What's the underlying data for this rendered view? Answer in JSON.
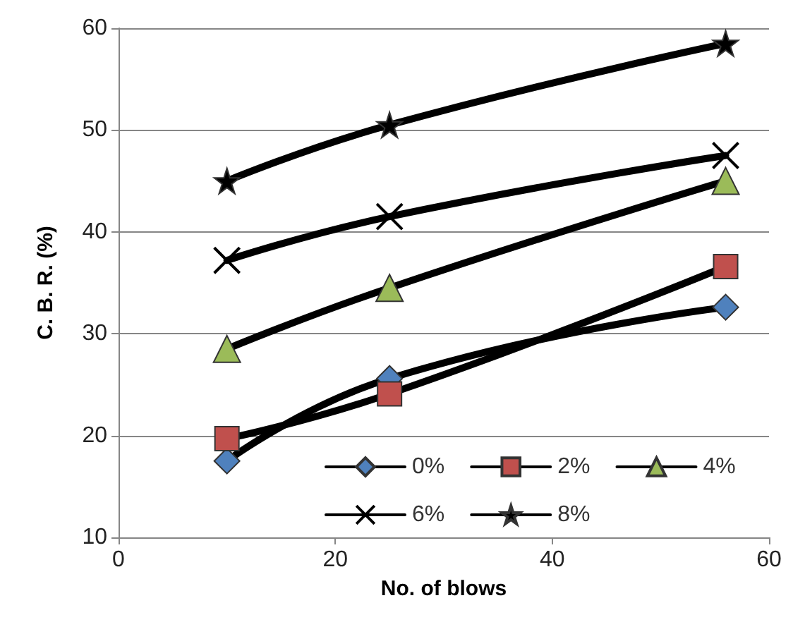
{
  "chart_data": {
    "type": "line",
    "xlabel": "No. of blows",
    "ylabel": "C. B. R. (%)",
    "xlim": [
      0,
      60
    ],
    "xticks": [
      0,
      20,
      40,
      60
    ],
    "ylim": [
      10,
      60
    ],
    "yticks": [
      10,
      20,
      30,
      40,
      50,
      60
    ],
    "grid": "y",
    "legend": "bottom right",
    "line_style": "solid",
    "series": [
      {
        "name": "0%",
        "color": "#4f81bd",
        "marker": "diamond",
        "x": [
          10,
          25,
          56
        ],
        "values": [
          17.5,
          25.6,
          32.6
        ]
      },
      {
        "name": "2%",
        "color": "#c0504d",
        "marker": "square",
        "x": [
          10,
          25,
          56
        ],
        "values": [
          19.7,
          24.1,
          36.6
        ]
      },
      {
        "name": "4%",
        "color": "#9bbb59",
        "marker": "triangle",
        "x": [
          10,
          25,
          56
        ],
        "values": [
          28.5,
          34.5,
          45
        ]
      },
      {
        "name": "6%",
        "color": "#000000",
        "marker": "cross",
        "x": [
          10,
          25,
          56
        ],
        "values": [
          37.2,
          41.5,
          47.5
        ]
      },
      {
        "name": "8%",
        "color": "#000000",
        "marker": "star",
        "x": [
          10,
          25,
          56
        ],
        "values": [
          45,
          50.5,
          58.5
        ]
      }
    ]
  }
}
